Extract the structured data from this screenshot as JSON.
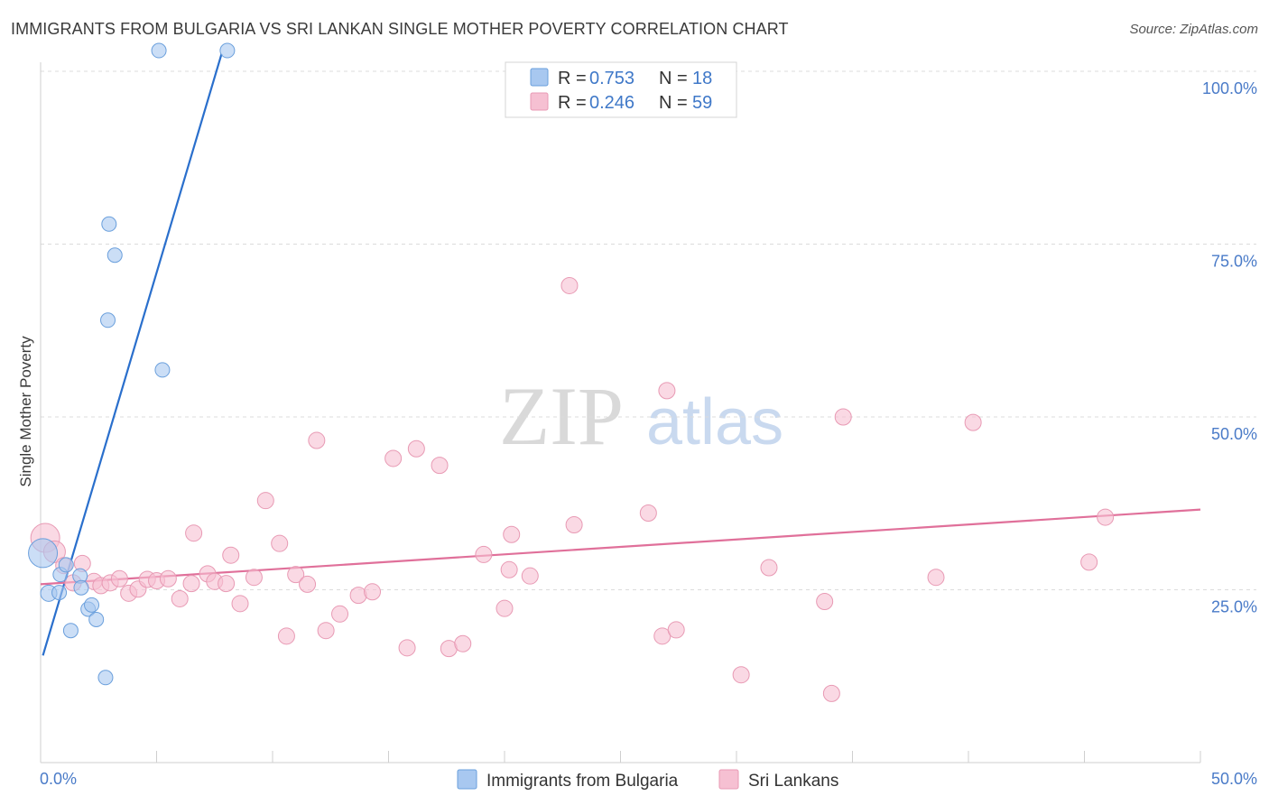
{
  "title": "IMMIGRANTS FROM BULGARIA VS SRI LANKAN SINGLE MOTHER POVERTY CORRELATION CHART",
  "source": "Source: ZipAtlas.com",
  "watermark": {
    "zip": "ZIP",
    "atlas": "atlas"
  },
  "chart_data": {
    "type": "scatter",
    "xlabel": "",
    "ylabel": "Single Mother Poverty",
    "xlim": [
      0,
      50
    ],
    "ylim": [
      0,
      100
    ],
    "x_tick_labels": [
      "0.0%",
      "50.0%"
    ],
    "y_ticks": [
      25,
      50,
      75,
      100
    ],
    "y_tick_labels": [
      "25.0%",
      "50.0%",
      "75.0%",
      "100.0%"
    ],
    "legend": {
      "position": "top-center",
      "entries": [
        {
          "r_label": "R =",
          "r_value": "0.753",
          "n_label": "N =",
          "n_value": "18"
        },
        {
          "r_label": "R =",
          "r_value": "0.246",
          "n_label": "N =",
          "n_value": "59"
        }
      ]
    },
    "series": [
      {
        "name": "Immigrants from Bulgaria",
        "color": "#a8c8f0",
        "stroke": "#6a9fdc",
        "line_color": "#2a6fcc",
        "trend": {
          "x1": 0.1,
          "y1": 15.5,
          "x2": 7.8,
          "y2": 102.5
        },
        "points": [
          [
            0.1,
            30.3,
            16
          ],
          [
            0.35,
            24.5,
            9
          ],
          [
            0.8,
            24.6,
            8
          ],
          [
            0.85,
            27.2,
            8
          ],
          [
            1.1,
            28.6,
            8
          ],
          [
            1.3,
            19.1,
            8
          ],
          [
            1.7,
            27.0,
            8
          ],
          [
            1.75,
            25.3,
            8
          ],
          [
            2.05,
            22.2,
            8
          ],
          [
            2.2,
            22.8,
            8
          ],
          [
            2.4,
            20.7,
            8
          ],
          [
            2.8,
            12.3,
            8
          ],
          [
            2.9,
            64.0,
            8
          ],
          [
            2.95,
            77.9,
            8
          ],
          [
            3.2,
            73.4,
            8
          ],
          [
            5.1,
            103.0,
            8
          ],
          [
            5.25,
            56.8,
            8
          ],
          [
            8.05,
            103.0,
            8
          ]
        ]
      },
      {
        "name": "Sri Lankans",
        "color": "#f6c0d2",
        "stroke": "#e89ab4",
        "line_color": "#e0709a",
        "trend": {
          "x1": 0.0,
          "y1": 25.8,
          "x2": 50.0,
          "y2": 36.6
        },
        "points": [
          [
            0.2,
            32.5,
            16
          ],
          [
            0.6,
            30.5,
            12
          ],
          [
            1.0,
            28.5,
            9
          ],
          [
            1.4,
            26.0,
            9
          ],
          [
            1.8,
            28.8,
            9
          ],
          [
            2.3,
            26.2,
            9
          ],
          [
            2.6,
            25.6,
            9
          ],
          [
            3.0,
            26.0,
            9
          ],
          [
            3.4,
            26.6,
            9
          ],
          [
            3.8,
            24.5,
            9
          ],
          [
            4.2,
            25.1,
            9
          ],
          [
            4.6,
            26.5,
            9
          ],
          [
            5.0,
            26.3,
            9
          ],
          [
            5.5,
            26.6,
            9
          ],
          [
            6.0,
            23.7,
            9
          ],
          [
            6.5,
            25.9,
            9
          ],
          [
            6.6,
            33.2,
            9
          ],
          [
            7.2,
            27.3,
            9
          ],
          [
            7.5,
            26.2,
            9
          ],
          [
            8.0,
            25.9,
            9
          ],
          [
            8.2,
            30.0,
            9
          ],
          [
            8.6,
            23.0,
            9
          ],
          [
            9.2,
            26.8,
            9
          ],
          [
            9.7,
            37.9,
            9
          ],
          [
            10.3,
            31.7,
            9
          ],
          [
            10.6,
            18.3,
            9
          ],
          [
            11.0,
            27.2,
            9
          ],
          [
            11.5,
            25.8,
            9
          ],
          [
            11.9,
            46.6,
            9
          ],
          [
            12.3,
            19.1,
            9
          ],
          [
            12.9,
            21.5,
            9
          ],
          [
            13.7,
            24.2,
            9
          ],
          [
            14.3,
            24.7,
            9
          ],
          [
            15.2,
            44.0,
            9
          ],
          [
            15.8,
            16.6,
            9
          ],
          [
            16.2,
            45.4,
            9
          ],
          [
            17.2,
            43.0,
            9
          ],
          [
            17.6,
            16.5,
            9
          ],
          [
            18.2,
            17.2,
            9
          ],
          [
            19.1,
            30.1,
            9
          ],
          [
            20.0,
            22.3,
            9
          ],
          [
            20.2,
            27.9,
            9
          ],
          [
            20.3,
            33.0,
            9
          ],
          [
            21.1,
            27.0,
            9
          ],
          [
            22.8,
            69.0,
            9
          ],
          [
            23.0,
            34.4,
            9
          ],
          [
            26.2,
            36.1,
            9
          ],
          [
            26.8,
            18.3,
            9
          ],
          [
            27.0,
            53.8,
            9
          ],
          [
            27.4,
            19.2,
            9
          ],
          [
            30.2,
            12.7,
            9
          ],
          [
            31.4,
            28.2,
            9
          ],
          [
            33.8,
            23.3,
            9
          ],
          [
            34.1,
            10.0,
            9
          ],
          [
            34.6,
            50.0,
            9
          ],
          [
            38.6,
            26.8,
            9
          ],
          [
            40.2,
            49.2,
            9
          ],
          [
            45.2,
            29.0,
            9
          ],
          [
            45.9,
            35.5,
            9
          ]
        ]
      }
    ]
  }
}
